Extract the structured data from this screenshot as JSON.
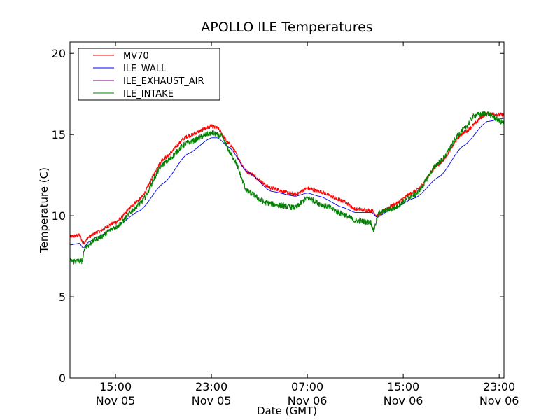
{
  "chart_data": {
    "type": "line",
    "title": "APOLLO ILE Temperatures",
    "xlabel": "Date (GMT)",
    "ylabel": "Temperature (C)",
    "ylim": [
      0,
      20.7
    ],
    "xlim_hours": [
      11.2,
      47.4
    ],
    "yticks": [
      0,
      5,
      10,
      15,
      20
    ],
    "xticks": [
      {
        "hour": 15,
        "line1": "15:00",
        "line2": "Nov 05"
      },
      {
        "hour": 23,
        "line1": "23:00",
        "line2": "Nov 05"
      },
      {
        "hour": 31,
        "line1": "07:00",
        "line2": "Nov 06"
      },
      {
        "hour": 39,
        "line1": "15:00",
        "line2": "Nov 06"
      },
      {
        "hour": 47,
        "line1": "23:00",
        "line2": "Nov 06"
      }
    ],
    "x_unit": "hours since 2000-11-05 00:00 GMT",
    "legend_position": "upper-left",
    "series": [
      {
        "name": "MV70",
        "color": "#ff0000",
        "noise": 0.12,
        "x": [
          11.2,
          12.0,
          12.3,
          12.8,
          13.5,
          15.0,
          17.0,
          19.0,
          21.0,
          23.0,
          23.5,
          24.5,
          26.0,
          28.0,
          30.0,
          31.0,
          32.0,
          34.0,
          35.0,
          36.4,
          36.8,
          38.0,
          40.0,
          42.0,
          44.0,
          46.0,
          47.4
        ],
        "y": [
          8.7,
          8.8,
          8.3,
          8.7,
          9.0,
          9.6,
          11.0,
          13.5,
          14.9,
          15.5,
          15.4,
          14.4,
          12.7,
          11.7,
          11.3,
          11.7,
          11.5,
          10.9,
          10.4,
          10.3,
          10.0,
          10.6,
          11.5,
          13.2,
          15.1,
          16.3,
          16.2
        ]
      },
      {
        "name": "ILE_WALL",
        "color": "#0000ff",
        "noise": 0.0,
        "x": [
          11.2,
          12.0,
          12.3,
          12.8,
          13.5,
          15.0,
          17.0,
          19.0,
          21.0,
          23.0,
          23.5,
          24.5,
          26.0,
          28.0,
          30.0,
          31.0,
          32.0,
          34.0,
          35.0,
          36.4,
          36.8,
          38.0,
          40.0,
          42.0,
          44.0,
          46.0,
          47.4
        ],
        "y": [
          8.2,
          8.3,
          8.0,
          8.4,
          8.7,
          9.3,
          10.3,
          12.0,
          13.8,
          14.8,
          14.8,
          14.2,
          12.7,
          11.5,
          11.2,
          11.4,
          11.2,
          10.5,
          10.2,
          10.2,
          9.9,
          10.4,
          11.1,
          12.4,
          14.3,
          15.8,
          16.0
        ]
      },
      {
        "name": "ILE_EXHAUST_AIR",
        "color": "#800080",
        "noise": 0.0,
        "x": [],
        "y": []
      },
      {
        "name": "ILE_INTAKE",
        "color": "#008000",
        "noise": 0.18,
        "x": [
          11.2,
          12.2,
          12.5,
          13.5,
          15.0,
          17.0,
          19.0,
          21.0,
          23.0,
          23.8,
          24.8,
          26.0,
          27.5,
          29.0,
          30.0,
          31.0,
          32.5,
          34.0,
          35.0,
          36.3,
          36.5,
          37.0,
          38.0,
          40.0,
          42.0,
          44.0,
          45.0,
          46.0,
          47.4
        ],
        "y": [
          7.2,
          7.2,
          8.1,
          8.6,
          9.3,
          10.7,
          13.2,
          14.5,
          15.1,
          14.9,
          13.6,
          11.5,
          10.8,
          10.6,
          10.5,
          11.1,
          10.6,
          10.1,
          9.7,
          9.6,
          9.1,
          10.2,
          10.4,
          11.3,
          13.3,
          15.3,
          16.2,
          16.3,
          15.7
        ]
      }
    ]
  }
}
